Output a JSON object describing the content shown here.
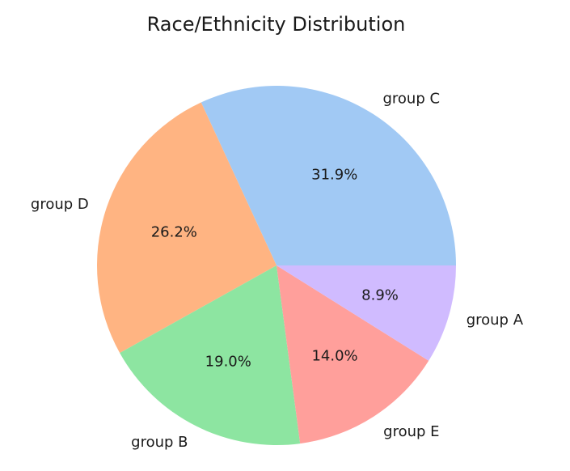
{
  "chart_data": {
    "type": "pie",
    "title": "Race/Ethnicity Distribution",
    "start_angle_deg": 0,
    "direction": "counterclockwise",
    "slices": [
      {
        "label": "group C",
        "value": 31.9,
        "value_label": "31.9%",
        "color": "#a1c9f4"
      },
      {
        "label": "group D",
        "value": 26.2,
        "value_label": "26.2%",
        "color": "#ffb482"
      },
      {
        "label": "group B",
        "value": 19.0,
        "value_label": "19.0%",
        "color": "#8de5a1"
      },
      {
        "label": "group E",
        "value": 14.0,
        "value_label": "14.0%",
        "color": "#ff9f9b"
      },
      {
        "label": "group A",
        "value": 8.9,
        "value_label": "8.9%",
        "color": "#d0bbff"
      }
    ]
  }
}
